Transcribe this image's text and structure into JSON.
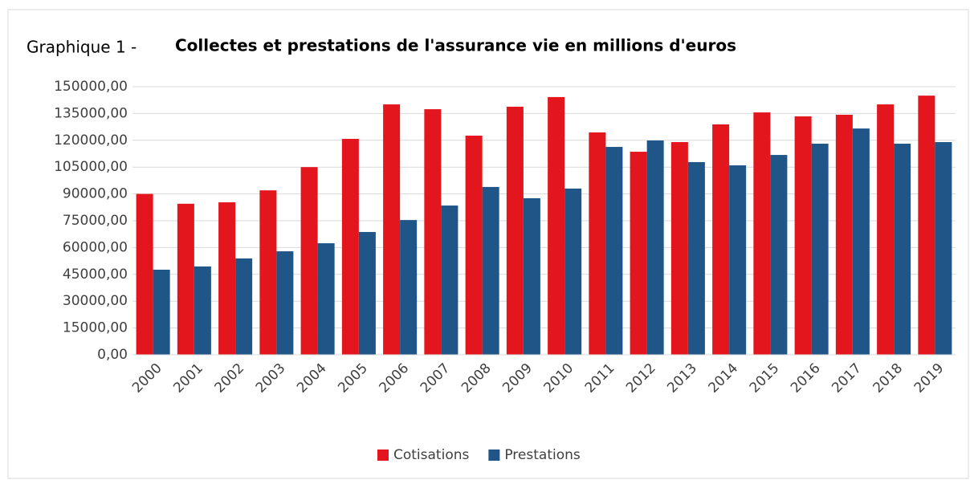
{
  "chart_data": {
    "type": "bar",
    "title_prefix": "Graphique 1 -",
    "title": "Collectes et prestations de l'assurance vie en millions d'euros",
    "categories": [
      "2000",
      "2001",
      "2002",
      "2003",
      "2004",
      "2005",
      "2006",
      "2007",
      "2008",
      "2009",
      "2010",
      "2011",
      "2012",
      "2013",
      "2014",
      "2015",
      "2016",
      "2017",
      "2018",
      "2019"
    ],
    "series": [
      {
        "name": "Cotisations",
        "color": "#e3161e",
        "values": [
          90000,
          84500,
          85300,
          92000,
          105000,
          120800,
          140100,
          137400,
          122600,
          138800,
          144200,
          124400,
          113600,
          119000,
          128900,
          135600,
          133400,
          134300,
          140100,
          145000
        ]
      },
      {
        "name": "Prestations",
        "color": "#1f5587",
        "values": [
          47600,
          49400,
          53900,
          57900,
          62400,
          68700,
          75400,
          83500,
          93900,
          87600,
          93000,
          116300,
          119900,
          107800,
          106000,
          111800,
          118100,
          126600,
          118100,
          119000
        ]
      }
    ],
    "ylim": [
      0,
      150000
    ],
    "yticks": [
      {
        "value": 0,
        "label": "0,00"
      },
      {
        "value": 15000,
        "label": "15000,00"
      },
      {
        "value": 30000,
        "label": "30000,00"
      },
      {
        "value": 45000,
        "label": "45000,00"
      },
      {
        "value": 60000,
        "label": "60000,00"
      },
      {
        "value": 75000,
        "label": "75000,00"
      },
      {
        "value": 90000,
        "label": "90000,00"
      },
      {
        "value": 105000,
        "label": "105000,00"
      },
      {
        "value": 120000,
        "label": "120000,00"
      },
      {
        "value": 135000,
        "label": "135000,00"
      },
      {
        "value": 150000,
        "label": "150000,00"
      }
    ],
    "grid": true,
    "legend": "bottom"
  }
}
